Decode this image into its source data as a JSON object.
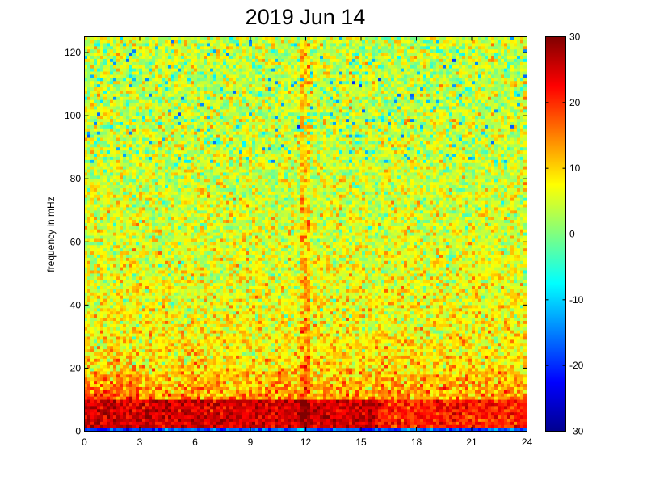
{
  "chart_data": {
    "type": "heatmap",
    "title": "2019 Jun 14",
    "xlabel": "",
    "ylabel": "frequency in mHz",
    "xlim": [
      0,
      24
    ],
    "ylim": [
      0,
      125
    ],
    "x_ticks": [
      "0",
      "3",
      "6",
      "9",
      "12",
      "15",
      "18",
      "21",
      "24"
    ],
    "y_ticks": [
      "0",
      "20",
      "40",
      "60",
      "80",
      "100",
      "120"
    ],
    "colorbar": {
      "colormap": "jet",
      "range": [
        -30,
        30
      ],
      "ticks": [
        "30",
        "20",
        "10",
        "0",
        "-10",
        "-20",
        "-30"
      ]
    },
    "features": {
      "low_freq_band_mhz": [
        1.5,
        10
      ],
      "low_freq_band_level": 25,
      "bottom_row_level": -18,
      "background_level_low": 14,
      "background_level_high": 4,
      "vertical_streak_hour": 12
    }
  }
}
